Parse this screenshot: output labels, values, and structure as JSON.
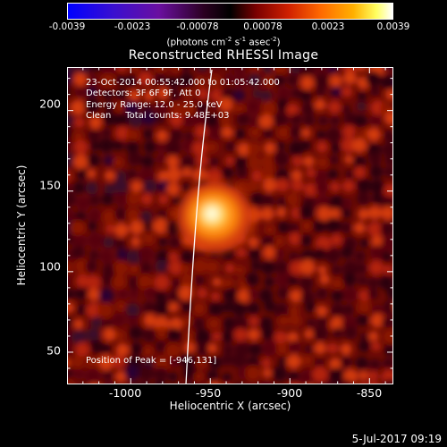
{
  "colorbar": {
    "ticks": [
      "-0.0039",
      "-0.0023",
      "-0.00078",
      "0.00078",
      "0.0023",
      "0.0039"
    ],
    "units": {
      "prefix": "(photons cm",
      "exp1": "-2",
      "mid1": " s",
      "exp2": "-1",
      "mid2": " asec",
      "exp3": "-2",
      "suffix": ")"
    }
  },
  "plot": {
    "title": "Reconstructed RHESSI Image",
    "annotations": {
      "time_range": "23-Oct-2014 00:55:42.000 to 01:05:42.000",
      "detectors": "Detectors: 3F 6F 9F, Att 0",
      "energy_range": "Energy Range: 12.0 - 25.0 keV",
      "clean_counts": "Clean     Total counts: 9.48E+03",
      "peak_position": "Position of Peak = [-946,131]"
    },
    "x_axis": {
      "label": "Heliocentric X (arcsec)",
      "ticks": [
        "-1000",
        "-950",
        "-900",
        "-850"
      ],
      "range": [
        -1040,
        -835
      ]
    },
    "y_axis": {
      "label": "Heliocentric Y (arcsec)",
      "ticks": [
        "50",
        "100",
        "150",
        "200"
      ],
      "range": [
        30,
        227
      ]
    },
    "peak": {
      "x": -946,
      "y": 131
    }
  },
  "timestamp": "5-Jul-2017 09:19",
  "colors": {
    "background": "#000000",
    "limb_line": "#ffffff",
    "peak": "#ffffe0"
  }
}
